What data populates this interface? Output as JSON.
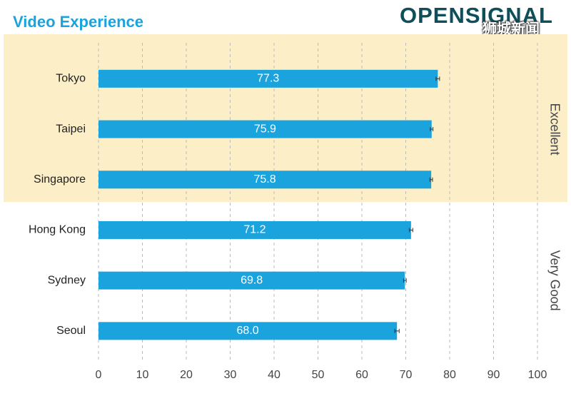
{
  "header": {
    "title": "Video Experience",
    "logo_text": "OPENSIGNAL",
    "watermark": "狮城新闻"
  },
  "colors": {
    "bar": "#1aa3dd",
    "title": "#1aa3dd",
    "excellent_band": "#fcefc7",
    "grid": "#bbbbbb",
    "logo": "#0f4f5a"
  },
  "chart_data": {
    "type": "bar",
    "orientation": "horizontal",
    "title": "Video Experience",
    "categories": [
      "Tokyo",
      "Taipei",
      "Singapore",
      "Hong Kong",
      "Sydney",
      "Seoul"
    ],
    "values": [
      77.3,
      75.9,
      75.8,
      71.2,
      69.8,
      68.0
    ],
    "value_labels": [
      "77.3",
      "75.9",
      "75.8",
      "71.2",
      "69.8",
      "68.0"
    ],
    "error_bars": [
      0.4,
      0.3,
      0.3,
      0.4,
      0.3,
      0.5
    ],
    "xlim": [
      0,
      100
    ],
    "xticks": [
      "0",
      "10",
      "20",
      "30",
      "40",
      "50",
      "60",
      "70",
      "80",
      "90",
      "100"
    ],
    "grid": "vertical dashed",
    "bands": [
      {
        "label": "Excellent",
        "categories": [
          "Tokyo",
          "Taipei",
          "Singapore"
        ],
        "highlighted": true
      },
      {
        "label": "Very Good",
        "categories": [
          "Hong Kong",
          "Sydney",
          "Seoul"
        ],
        "highlighted": false
      }
    ]
  }
}
